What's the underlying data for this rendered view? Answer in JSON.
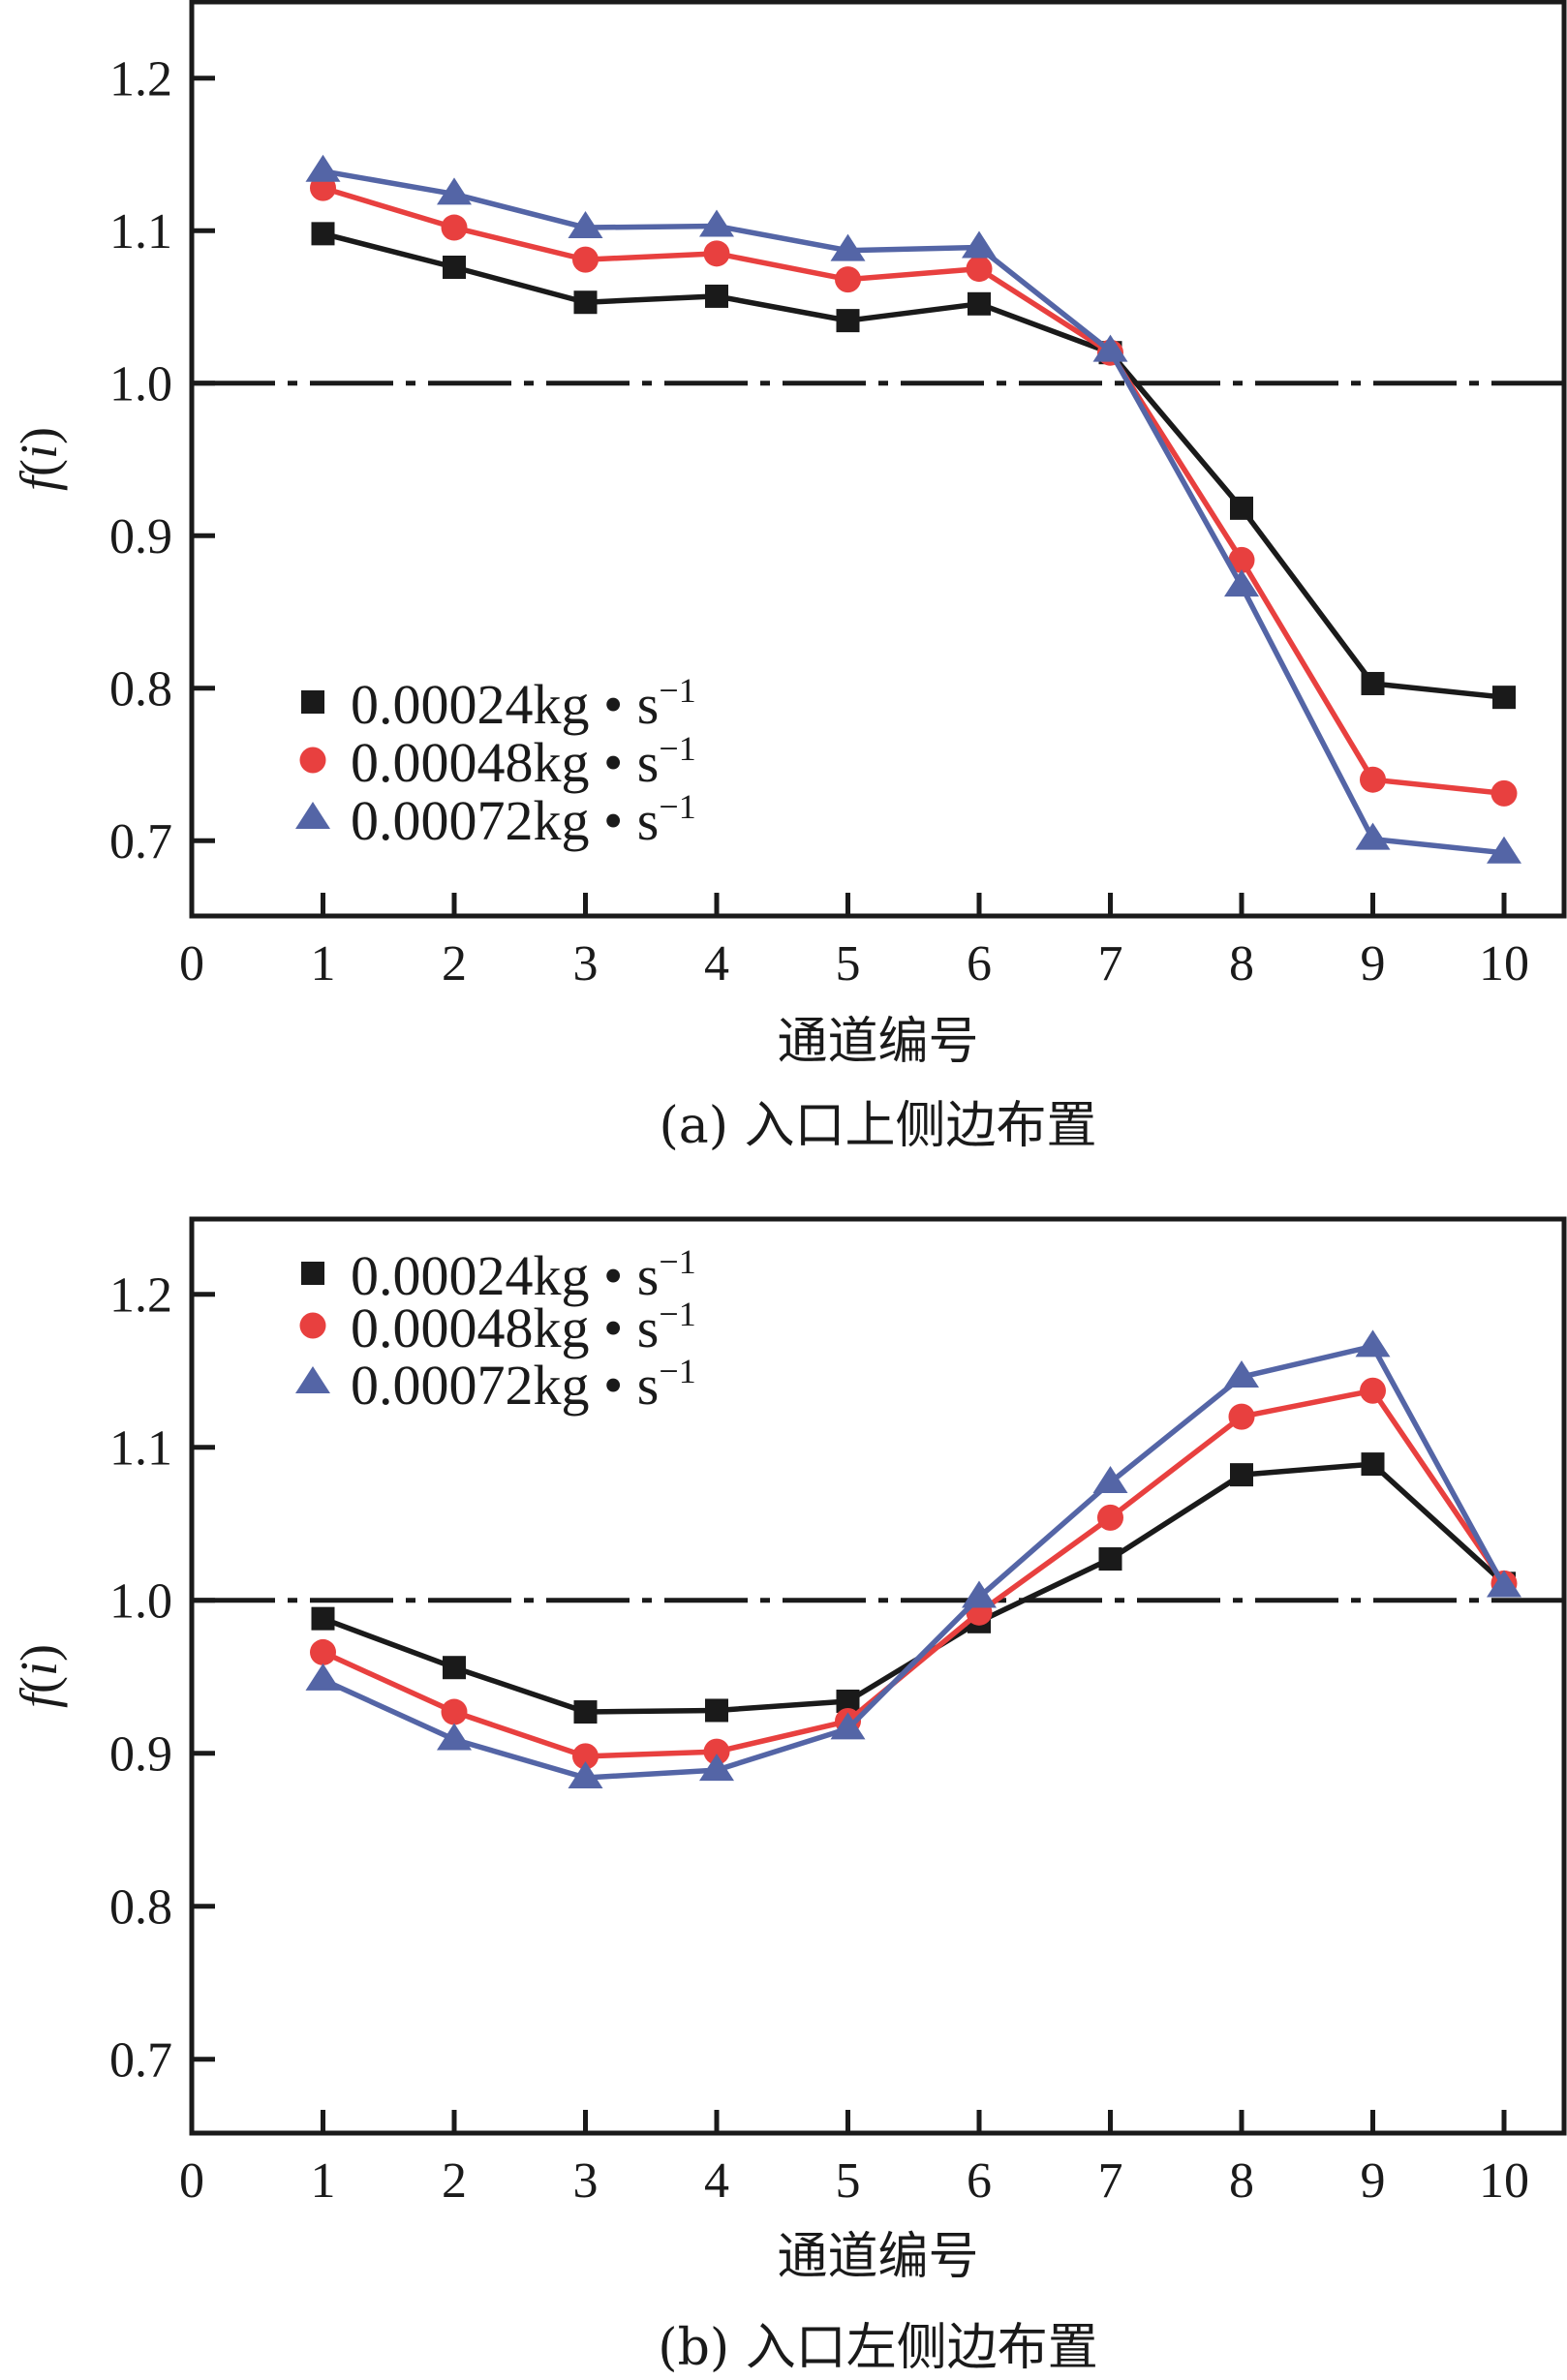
{
  "chart_data": [
    {
      "type": "line",
      "panel": "a",
      "caption": "(a) 入口上侧边布置",
      "xlabel": "通道编号",
      "ylabel_func": "f",
      "ylabel_var": "i",
      "xlim": [
        0,
        10
      ],
      "ylim": [
        0.65,
        1.25
      ],
      "xticks": [
        0,
        1,
        2,
        3,
        4,
        5,
        6,
        7,
        8,
        9,
        10
      ],
      "yticks": [
        0.7,
        0.8,
        0.9,
        1.0,
        1.1,
        1.2
      ],
      "ytick_labels": [
        "0.7",
        "0.8",
        "0.9",
        "1.0",
        "1.1",
        "1.2"
      ],
      "reference_line": {
        "y": 1.0,
        "style": "dash-dot"
      },
      "legend_position": "lower-left",
      "x": [
        1,
        2,
        3,
        4,
        5,
        6,
        7,
        8,
        9,
        10
      ],
      "series": [
        {
          "name": "0.00024kg • s",
          "exp": "−1",
          "marker": "square",
          "color": "#1a1a1a",
          "values": [
            1.098,
            1.076,
            1.053,
            1.057,
            1.041,
            1.052,
            1.02,
            0.918,
            0.803,
            0.794
          ]
        },
        {
          "name": "0.00048kg • s",
          "exp": "−1",
          "marker": "circle",
          "color": "#e8403f",
          "values": [
            1.128,
            1.102,
            1.081,
            1.085,
            1.068,
            1.075,
            1.02,
            0.884,
            0.74,
            0.731
          ]
        },
        {
          "name": "0.00072kg • s",
          "exp": "−1",
          "marker": "triangle",
          "color": "#5465a6",
          "values": [
            1.139,
            1.124,
            1.102,
            1.103,
            1.087,
            1.089,
            1.021,
            0.867,
            0.701,
            0.692
          ]
        }
      ]
    },
    {
      "type": "line",
      "panel": "b",
      "caption": "(b) 入口左侧边布置",
      "xlabel": "通道编号",
      "ylabel_func": "f",
      "ylabel_var": "i",
      "xlim": [
        0,
        10
      ],
      "ylim": [
        0.65,
        1.25
      ],
      "xticks": [
        0,
        1,
        2,
        3,
        4,
        5,
        6,
        7,
        8,
        9,
        10
      ],
      "yticks": [
        0.7,
        0.8,
        0.9,
        1.0,
        1.1,
        1.2
      ],
      "ytick_labels": [
        "0.7",
        "0.8",
        "0.9",
        "1.0",
        "1.1",
        "1.2"
      ],
      "reference_line": {
        "y": 1.0,
        "style": "dash-dot"
      },
      "legend_position": "top-left",
      "x": [
        1,
        2,
        3,
        4,
        5,
        6,
        7,
        8,
        9,
        10
      ],
      "series": [
        {
          "name": "0.00024kg • s",
          "exp": "−1",
          "marker": "square",
          "color": "#1a1a1a",
          "values": [
            0.988,
            0.956,
            0.927,
            0.928,
            0.934,
            0.986,
            1.027,
            1.082,
            1.089,
            1.011
          ]
        },
        {
          "name": "0.00048kg • s",
          "exp": "−1",
          "marker": "circle",
          "color": "#e8403f",
          "values": [
            0.966,
            0.927,
            0.898,
            0.901,
            0.921,
            0.992,
            1.054,
            1.12,
            1.137,
            1.011
          ]
        },
        {
          "name": "0.00072kg • s",
          "exp": "−1",
          "marker": "triangle",
          "color": "#5465a6",
          "values": [
            0.948,
            0.909,
            0.884,
            0.889,
            0.916,
            1.002,
            1.077,
            1.146,
            1.166,
            1.009
          ]
        }
      ]
    }
  ]
}
